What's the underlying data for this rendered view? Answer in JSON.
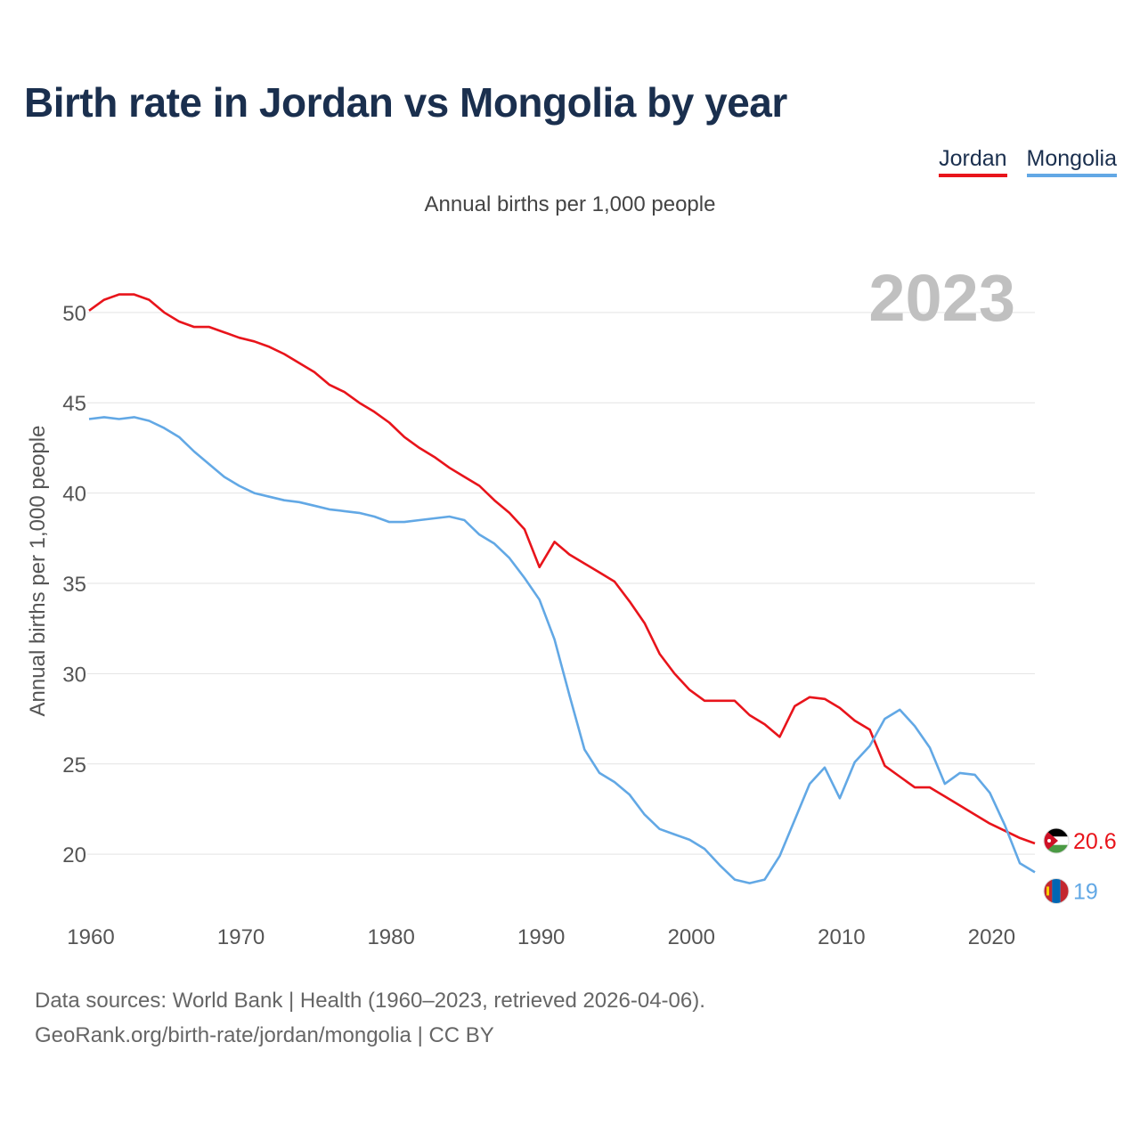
{
  "title": "Birth rate in Jordan vs Mongolia by year",
  "subtitle": "Annual births per 1,000 people",
  "footer": {
    "line1": "Data sources: World Bank | Health (1960–2023, retrieved 2026-04-06).",
    "line2": "GeoRank.org/birth-rate/jordan/mongolia | CC BY"
  },
  "chart_data": {
    "type": "line",
    "title": "Birth rate in Jordan vs Mongolia by year",
    "xlabel": "",
    "ylabel": "Annual births per 1,000 people",
    "year_label": "2023",
    "xlim": [
      1960,
      2023
    ],
    "ylim": [
      17,
      53
    ],
    "x_ticks": [
      1960,
      1970,
      1980,
      1990,
      2000,
      2010,
      2020
    ],
    "y_ticks": [
      20,
      25,
      30,
      35,
      40,
      45,
      50
    ],
    "grid": true,
    "legend_position": "top-right",
    "x": [
      1960,
      1961,
      1962,
      1963,
      1964,
      1965,
      1966,
      1967,
      1968,
      1969,
      1970,
      1971,
      1972,
      1973,
      1974,
      1975,
      1976,
      1977,
      1978,
      1979,
      1980,
      1981,
      1982,
      1983,
      1984,
      1985,
      1986,
      1987,
      1988,
      1989,
      1990,
      1991,
      1992,
      1993,
      1994,
      1995,
      1996,
      1997,
      1998,
      1999,
      2000,
      2001,
      2002,
      2003,
      2004,
      2005,
      2006,
      2007,
      2008,
      2009,
      2010,
      2011,
      2012,
      2013,
      2014,
      2015,
      2016,
      2017,
      2018,
      2019,
      2020,
      2021,
      2022,
      2023
    ],
    "series": [
      {
        "name": "Jordan",
        "color": "#e8141b",
        "end_label": "20.6",
        "flag": "jordan-flag",
        "values": [
          50.1,
          50.7,
          51.0,
          51.0,
          50.7,
          50.0,
          49.5,
          49.2,
          49.2,
          48.9,
          48.6,
          48.4,
          48.1,
          47.7,
          47.2,
          46.7,
          46.0,
          45.6,
          45.0,
          44.5,
          43.9,
          43.1,
          42.5,
          42.0,
          41.4,
          40.9,
          40.4,
          39.6,
          38.9,
          38.0,
          35.9,
          37.3,
          36.6,
          36.1,
          35.6,
          35.1,
          34.0,
          32.8,
          31.1,
          30.0,
          29.1,
          28.5,
          28.5,
          28.5,
          27.7,
          27.2,
          26.5,
          28.2,
          28.7,
          28.6,
          28.1,
          27.4,
          26.9,
          24.9,
          24.3,
          23.7,
          23.7,
          23.2,
          22.7,
          22.2,
          21.7,
          21.3,
          20.9,
          20.6
        ]
      },
      {
        "name": "Mongolia",
        "color": "#62a8e5",
        "end_label": "19",
        "flag": "mongolia-flag",
        "values": [
          44.1,
          44.2,
          44.1,
          44.2,
          44.0,
          43.6,
          43.1,
          42.3,
          41.6,
          40.9,
          40.4,
          40.0,
          39.8,
          39.6,
          39.5,
          39.3,
          39.1,
          39.0,
          38.9,
          38.7,
          38.4,
          38.4,
          38.5,
          38.6,
          38.7,
          38.5,
          37.7,
          37.2,
          36.4,
          35.3,
          34.1,
          31.9,
          28.8,
          25.8,
          24.5,
          24.0,
          23.3,
          22.2,
          21.4,
          21.1,
          20.8,
          20.3,
          19.4,
          18.6,
          18.4,
          18.6,
          19.9,
          21.9,
          23.9,
          24.8,
          23.1,
          25.1,
          26.0,
          27.5,
          28.0,
          27.1,
          25.9,
          23.9,
          24.5,
          24.4,
          23.4,
          21.6,
          19.5,
          19.0
        ]
      }
    ]
  }
}
